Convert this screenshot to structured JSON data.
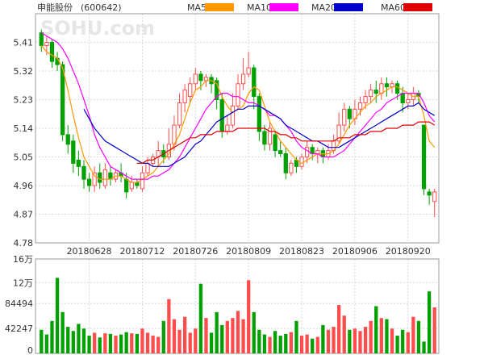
{
  "header": {
    "stock_name": "申能股份",
    "stock_code": "(600642)",
    "watermark": "SOHU.com"
  },
  "legend": [
    {
      "label": "MA5",
      "color": "#ff9900"
    },
    {
      "label": "MA10",
      "color": "#ff00ff"
    },
    {
      "label": "MA20",
      "color": "#0000cc"
    },
    {
      "label": "MA60",
      "color": "#dd0000"
    }
  ],
  "colors": {
    "up": "#ff4d4d",
    "down": "#00a000",
    "grid": "#d8d8d8",
    "axis": "#999999"
  },
  "chart_data": [
    {
      "type": "candlestick",
      "title": "申能股份(600642)",
      "ylim": [
        4.78,
        5.5
      ],
      "y_ticks": [
        5.41,
        5.32,
        5.23,
        5.14,
        5.05,
        4.96,
        4.87,
        4.78
      ],
      "x_ticks": [
        {
          "index": 9,
          "label": "20180628"
        },
        {
          "index": 19,
          "label": "20180712"
        },
        {
          "index": 29,
          "label": "20180726"
        },
        {
          "index": 39,
          "label": "20180809"
        },
        {
          "index": 49,
          "label": "20180823"
        },
        {
          "index": 59,
          "label": "20180906"
        },
        {
          "index": 69,
          "label": "20180920"
        }
      ],
      "candles": [
        [
          5.44,
          5.4,
          5.45,
          5.38
        ],
        [
          5.4,
          5.41,
          5.43,
          5.37
        ],
        [
          5.41,
          5.35,
          5.42,
          5.33
        ],
        [
          5.36,
          5.34,
          5.38,
          5.32
        ],
        [
          5.34,
          5.12,
          5.35,
          5.1
        ],
        [
          5.12,
          5.09,
          5.15,
          5.06
        ],
        [
          5.1,
          5.03,
          5.12,
          5.0
        ],
        [
          5.04,
          5.02,
          5.07,
          4.99
        ],
        [
          5.02,
          4.98,
          5.04,
          4.95
        ],
        [
          4.98,
          4.96,
          5.0,
          4.94
        ],
        [
          4.96,
          5.0,
          5.02,
          4.94
        ],
        [
          5.0,
          4.97,
          5.03,
          4.95
        ],
        [
          4.96,
          5.01,
          5.03,
          4.95
        ],
        [
          5.0,
          4.98,
          5.02,
          4.96
        ],
        [
          4.98,
          5.0,
          5.01,
          4.97
        ],
        [
          5.0,
          4.99,
          5.03,
          4.97
        ],
        [
          4.98,
          4.94,
          5.0,
          4.92
        ],
        [
          4.95,
          4.97,
          4.99,
          4.94
        ],
        [
          4.97,
          4.96,
          4.98,
          4.95
        ],
        [
          4.95,
          5.0,
          5.02,
          4.94
        ],
        [
          5.0,
          5.03,
          5.05,
          4.99
        ],
        [
          5.03,
          5.05,
          5.06,
          5.02
        ],
        [
          5.05,
          5.07,
          5.1,
          5.02
        ],
        [
          5.07,
          5.05,
          5.09,
          5.03
        ],
        [
          5.05,
          5.09,
          5.14,
          5.04
        ],
        [
          5.09,
          5.15,
          5.18,
          5.07
        ],
        [
          5.15,
          5.22,
          5.25,
          5.14
        ],
        [
          5.22,
          5.26,
          5.28,
          5.19
        ],
        [
          5.24,
          5.28,
          5.3,
          5.22
        ],
        [
          5.28,
          5.31,
          5.33,
          5.26
        ],
        [
          5.31,
          5.29,
          5.32,
          5.26
        ],
        [
          5.29,
          5.3,
          5.31,
          5.27
        ],
        [
          5.3,
          5.28,
          5.31,
          5.25
        ],
        [
          5.29,
          5.23,
          5.3,
          5.2
        ],
        [
          5.23,
          5.13,
          5.25,
          5.11
        ],
        [
          5.13,
          5.15,
          5.18,
          5.12
        ],
        [
          5.15,
          5.21,
          5.25,
          5.14
        ],
        [
          5.21,
          5.28,
          5.31,
          5.2
        ],
        [
          5.28,
          5.31,
          5.36,
          5.26
        ],
        [
          5.31,
          5.33,
          5.38,
          5.3
        ],
        [
          5.33,
          5.24,
          5.34,
          5.2
        ],
        [
          5.24,
          5.13,
          5.25,
          5.1
        ],
        [
          5.13,
          5.09,
          5.15,
          5.07
        ],
        [
          5.09,
          5.14,
          5.16,
          5.07
        ],
        [
          5.12,
          5.07,
          5.13,
          5.05
        ],
        [
          5.07,
          5.06,
          5.1,
          5.05
        ],
        [
          5.06,
          5.0,
          5.08,
          4.98
        ],
        [
          5.0,
          5.03,
          5.04,
          4.99
        ],
        [
          5.04,
          5.02,
          5.05,
          5.0
        ],
        [
          5.02,
          5.05,
          5.06,
          5.01
        ],
        [
          5.05,
          5.08,
          5.1,
          5.03
        ],
        [
          5.08,
          5.06,
          5.09,
          5.04
        ],
        [
          5.06,
          5.07,
          5.08,
          5.03
        ],
        [
          5.07,
          5.05,
          5.08,
          5.03
        ],
        [
          5.05,
          5.07,
          5.09,
          5.04
        ],
        [
          5.07,
          5.1,
          5.12,
          5.06
        ],
        [
          5.1,
          5.15,
          5.19,
          5.09
        ],
        [
          5.15,
          5.2,
          5.22,
          5.13
        ],
        [
          5.2,
          5.17,
          5.21,
          5.14
        ],
        [
          5.17,
          5.2,
          5.23,
          5.15
        ],
        [
          5.2,
          5.22,
          5.24,
          5.18
        ],
        [
          5.22,
          5.24,
          5.26,
          5.2
        ],
        [
          5.24,
          5.26,
          5.28,
          5.22
        ],
        [
          5.26,
          5.25,
          5.29,
          5.22
        ],
        [
          5.25,
          5.28,
          5.3,
          5.23
        ],
        [
          5.28,
          5.27,
          5.3,
          5.24
        ],
        [
          5.27,
          5.28,
          5.29,
          5.25
        ],
        [
          5.28,
          5.25,
          5.29,
          5.23
        ],
        [
          5.25,
          5.22,
          5.27,
          5.19
        ],
        [
          5.22,
          5.23,
          5.25,
          5.2
        ],
        [
          5.23,
          5.25,
          5.27,
          5.21
        ],
        [
          5.25,
          5.24,
          5.26,
          5.22
        ],
        [
          5.15,
          4.95,
          5.15,
          4.93
        ],
        [
          4.94,
          4.93,
          4.95,
          4.9
        ],
        [
          4.91,
          4.94,
          4.95,
          4.86
        ]
      ],
      "series": [
        {
          "name": "MA5",
          "values": [
            5.4,
            5.38,
            5.37,
            5.36,
            5.33,
            5.26,
            5.18,
            5.11,
            5.05,
            5.02,
            4.99,
            4.98,
            4.98,
            4.98,
            4.99,
            4.99,
            4.98,
            4.97,
            4.97,
            4.98,
            4.99,
            5.0,
            5.02,
            5.04,
            5.06,
            5.09,
            5.12,
            5.17,
            5.22,
            5.26,
            5.27,
            5.29,
            5.29,
            5.28,
            5.24,
            5.21,
            5.19,
            5.2,
            5.21,
            5.25,
            5.27,
            5.26,
            5.21,
            5.16,
            5.13,
            5.1,
            5.08,
            5.06,
            5.04,
            5.03,
            5.04,
            5.05,
            5.06,
            5.06,
            5.06,
            5.07,
            5.09,
            5.12,
            5.15,
            5.17,
            5.19,
            5.21,
            5.22,
            5.24,
            5.25,
            5.26,
            5.27,
            5.27,
            5.26,
            5.25,
            5.24,
            5.24,
            5.18,
            5.1,
            5.08
          ]
        },
        {
          "name": "MA10",
          "values": [
            5.44,
            5.43,
            5.42,
            5.41,
            5.39,
            5.36,
            5.32,
            5.28,
            5.23,
            5.18,
            5.12,
            5.08,
            5.05,
            5.02,
            5.01,
            5.0,
            4.99,
            4.98,
            4.98,
            4.98,
            4.98,
            4.99,
            4.99,
            5.0,
            5.01,
            5.03,
            5.05,
            5.08,
            5.11,
            5.14,
            5.17,
            5.2,
            5.22,
            5.24,
            5.25,
            5.25,
            5.24,
            5.24,
            5.23,
            5.22,
            5.22,
            5.21,
            5.2,
            5.18,
            5.18,
            5.17,
            5.15,
            5.13,
            5.1,
            5.08,
            5.07,
            5.06,
            5.06,
            5.05,
            5.05,
            5.05,
            5.06,
            5.07,
            5.09,
            5.11,
            5.13,
            5.15,
            5.17,
            5.19,
            5.2,
            5.22,
            5.23,
            5.24,
            5.25,
            5.25,
            5.25,
            5.25,
            5.22,
            5.18,
            5.16
          ]
        },
        {
          "name": "MA20",
          "values": [
            null,
            null,
            null,
            null,
            null,
            null,
            null,
            null,
            5.2,
            5.17,
            5.14,
            5.12,
            5.1,
            5.09,
            5.08,
            5.07,
            5.06,
            5.05,
            5.04,
            5.03,
            5.03,
            5.02,
            5.02,
            5.02,
            5.02,
            5.03,
            5.04,
            5.05,
            5.07,
            5.09,
            5.1,
            5.12,
            5.14,
            5.16,
            5.17,
            5.18,
            5.19,
            5.2,
            5.2,
            5.21,
            5.21,
            5.21,
            5.2,
            5.19,
            5.18,
            5.17,
            5.15,
            5.14,
            5.13,
            5.12,
            5.11,
            5.1,
            5.1,
            5.09,
            5.08,
            5.08,
            5.08,
            5.09,
            5.1,
            5.11,
            5.12,
            5.13,
            5.14,
            5.15,
            5.16,
            5.17,
            5.18,
            5.19,
            5.2,
            5.21,
            5.21,
            5.22,
            5.2,
            5.19,
            5.18
          ]
        },
        {
          "name": "MA60",
          "values": [
            null,
            null,
            null,
            null,
            null,
            null,
            null,
            null,
            null,
            null,
            null,
            null,
            null,
            null,
            null,
            null,
            null,
            null,
            5.03,
            5.03,
            5.04,
            5.04,
            5.05,
            5.06,
            5.07,
            5.08,
            5.09,
            5.1,
            5.11,
            5.11,
            5.12,
            5.12,
            5.12,
            5.13,
            5.13,
            5.13,
            5.13,
            5.14,
            5.14,
            5.14,
            5.14,
            5.14,
            5.14,
            5.13,
            5.13,
            5.12,
            5.12,
            5.11,
            5.11,
            5.1,
            5.1,
            5.1,
            5.1,
            5.1,
            5.1,
            5.1,
            5.11,
            5.11,
            5.11,
            5.12,
            5.12,
            5.12,
            5.13,
            5.13,
            5.13,
            5.14,
            5.14,
            5.14,
            5.15,
            5.15,
            5.15,
            5.16,
            5.16,
            5.16,
            5.15
          ]
        }
      ]
    },
    {
      "type": "bar",
      "title": "volume",
      "ylim": [
        0,
        160000
      ],
      "y_ticks": [
        {
          "value": 160000,
          "label": "16万"
        },
        {
          "value": 120000,
          "label": "12万"
        },
        {
          "value": 84494,
          "label": "84494"
        },
        {
          "value": 42247,
          "label": "42247"
        },
        {
          "value": 0,
          "label": "0"
        }
      ],
      "values": [
        40000,
        32000,
        55000,
        128000,
        70000,
        45000,
        38000,
        50000,
        42000,
        30000,
        35000,
        27000,
        34000,
        33000,
        30000,
        32000,
        36000,
        34000,
        33000,
        42000,
        35000,
        30000,
        28000,
        55000,
        92000,
        58000,
        40000,
        62000,
        35000,
        42000,
        118000,
        60000,
        35000,
        70000,
        48000,
        55000,
        60000,
        72000,
        58000,
        124000,
        70000,
        40000,
        32000,
        28000,
        38000,
        30000,
        33000,
        36000,
        55000,
        30000,
        32000,
        25000,
        28000,
        48000,
        40000,
        45000,
        82000,
        64000,
        40000,
        42000,
        38000,
        45000,
        55000,
        80000,
        60000,
        58000,
        42000,
        30000,
        40000,
        36000,
        62000,
        55000,
        20000,
        105000,
        78000
      ],
      "up_flags": [
        false,
        false,
        false,
        false,
        false,
        false,
        false,
        false,
        false,
        false,
        true,
        false,
        true,
        false,
        true,
        false,
        false,
        true,
        false,
        true,
        true,
        true,
        true,
        false,
        true,
        true,
        true,
        true,
        true,
        true,
        false,
        true,
        false,
        false,
        false,
        true,
        true,
        true,
        true,
        true,
        false,
        false,
        false,
        true,
        false,
        false,
        false,
        true,
        false,
        true,
        true,
        false,
        true,
        false,
        true,
        true,
        true,
        true,
        false,
        true,
        true,
        true,
        true,
        false,
        true,
        false,
        true,
        false,
        false,
        true,
        true,
        false,
        false,
        false,
        true
      ]
    }
  ]
}
